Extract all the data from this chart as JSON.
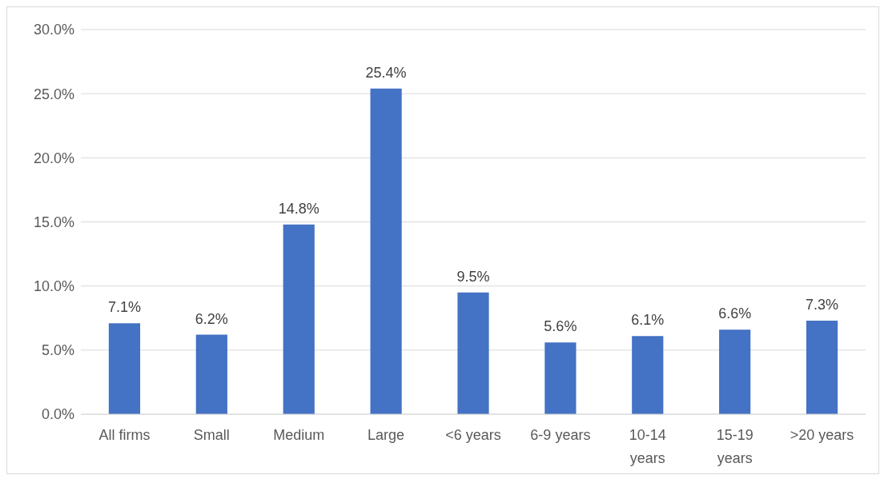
{
  "chart_data": {
    "type": "bar",
    "categories": [
      "All firms",
      "Small",
      "Medium",
      "Large",
      "<6 years",
      "6-9 years",
      "10-14 years",
      "15-19 years",
      ">20 years"
    ],
    "values": [
      7.1,
      6.2,
      14.8,
      25.4,
      9.5,
      5.6,
      6.1,
      6.6,
      7.3
    ],
    "value_labels": [
      "7.1%",
      "6.2%",
      "14.8%",
      "25.4%",
      "9.5%",
      "5.6%",
      "6.1%",
      "6.6%",
      "7.3%"
    ],
    "color": "#4472c4",
    "ylim": [
      0,
      30
    ],
    "yticks": [
      {
        "value": 0,
        "label": "0.0%"
      },
      {
        "value": 5,
        "label": "5.0%"
      },
      {
        "value": 10,
        "label": "10.0%"
      },
      {
        "value": 15,
        "label": "15.0%"
      },
      {
        "value": 20,
        "label": "20.0%"
      },
      {
        "value": 25,
        "label": "25.0%"
      },
      {
        "value": 30,
        "label": "30.0%"
      }
    ],
    "grid": "y"
  }
}
